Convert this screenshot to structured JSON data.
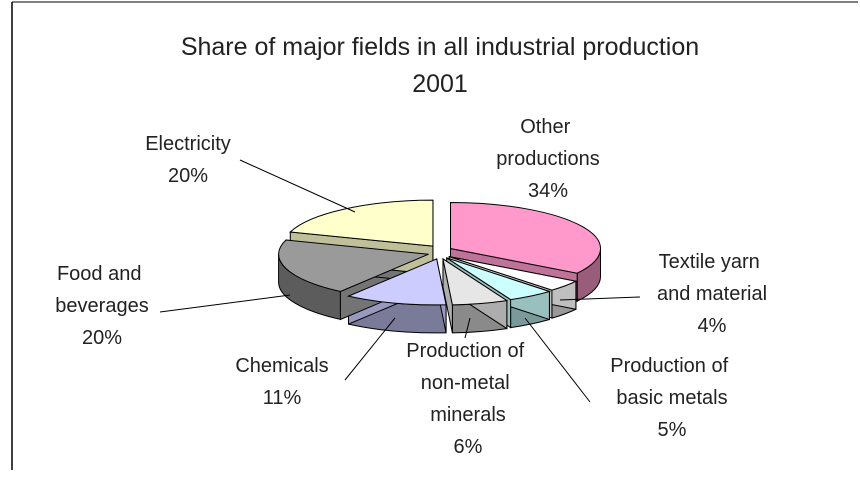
{
  "chart_data": {
    "type": "pie",
    "title": "Share of major fields in all industrial production",
    "subtitle": "2001",
    "categories": [
      "Other productions",
      "Textile yarn and material",
      "Production of basic metals",
      "Production of non-metal minerals",
      "Chemicals",
      "Food and beverages",
      "Electricity"
    ],
    "values": [
      34,
      4,
      5,
      6,
      11,
      20,
      20
    ],
    "value_labels": [
      "34%",
      "4%",
      "5%",
      "6%",
      "11%",
      "20%",
      "20%"
    ],
    "colors": [
      "#ff99cc",
      "#ffffff",
      "#ccffff",
      "#e6e6e6",
      "#ccccff",
      "#9a9a9a",
      "#ffffcc"
    ]
  }
}
